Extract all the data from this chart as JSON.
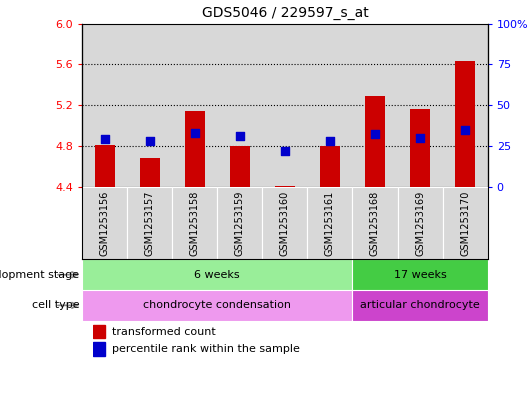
{
  "title": "GDS5046 / 229597_s_at",
  "samples": [
    "GSM1253156",
    "GSM1253157",
    "GSM1253158",
    "GSM1253159",
    "GSM1253160",
    "GSM1253161",
    "GSM1253168",
    "GSM1253169",
    "GSM1253170"
  ],
  "bar_values": [
    4.81,
    4.68,
    5.14,
    4.8,
    4.41,
    4.8,
    5.29,
    5.16,
    5.63
  ],
  "percentile_values": [
    29,
    28,
    33,
    31,
    22,
    28,
    32,
    30,
    35
  ],
  "ylim_left": [
    4.4,
    6.0
  ],
  "ylim_right": [
    0,
    100
  ],
  "yticks_left": [
    4.4,
    4.8,
    5.2,
    5.6,
    6.0
  ],
  "yticks_right": [
    0,
    25,
    50,
    75,
    100
  ],
  "bar_color": "#cc0000",
  "dot_color": "#0000cc",
  "bar_bottom": 4.4,
  "dev_stage_groups": [
    {
      "label": "6 weeks",
      "start": 0,
      "end": 5,
      "color": "#99ee99"
    },
    {
      "label": "17 weeks",
      "start": 6,
      "end": 8,
      "color": "#44cc44"
    }
  ],
  "cell_type_groups": [
    {
      "label": "chondrocyte condensation",
      "start": 0,
      "end": 5,
      "color": "#ee99ee"
    },
    {
      "label": "articular chondrocyte",
      "start": 6,
      "end": 8,
      "color": "#cc44cc"
    }
  ],
  "dev_stage_label": "development stage",
  "cell_type_label": "cell type",
  "legend_bar_label": "transformed count",
  "legend_dot_label": "percentile rank within the sample",
  "right_ytick_labels": [
    "0",
    "25",
    "50",
    "75",
    "100%"
  ],
  "panel_bg_color": "#d8d8d8",
  "dot_size": 28,
  "bar_width": 0.45
}
